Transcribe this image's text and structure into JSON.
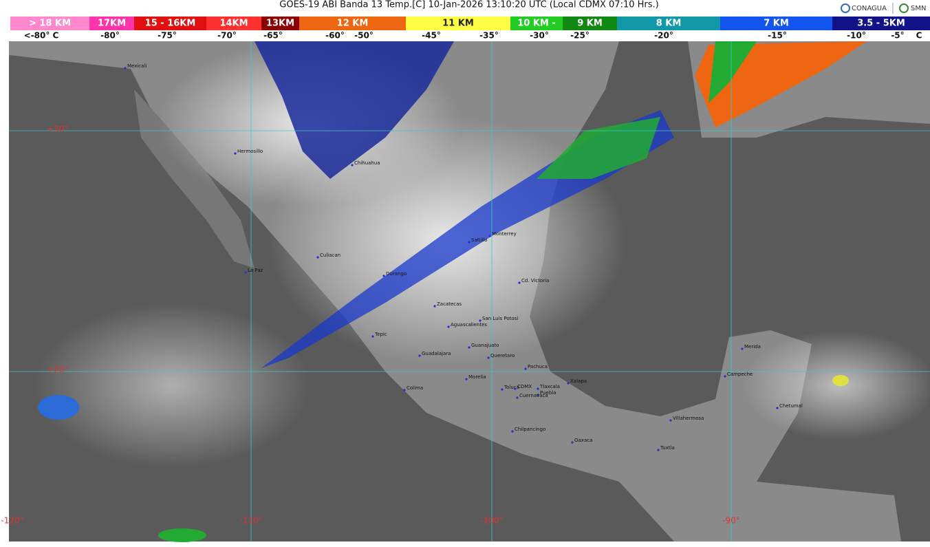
{
  "header": {
    "title": "GOES-19 ABI Banda 13 Temp.[C] 10-Jan-2026 13:10:20 UTC (Local CDMX  07:10 Hrs.)",
    "logos": [
      "CONAGUA",
      "SMN"
    ]
  },
  "legend": {
    "bands": [
      {
        "label": "> 18 KM",
        "color": "#ff88cc"
      },
      {
        "label": "17KM",
        "color": "#ff33aa"
      },
      {
        "label": "15 - 16KM",
        "color": "#e01010"
      },
      {
        "label": "14KM",
        "color": "#ff3030"
      },
      {
        "label": "13KM",
        "color": "#8b0000"
      },
      {
        "label": "12 KM",
        "color": "#ee6611"
      },
      {
        "label": "11 KM",
        "color": "#ffff44"
      },
      {
        "label": "10 KM -",
        "color": "#22cc22"
      },
      {
        "label": "9 KM",
        "color": "#118811"
      },
      {
        "label": "8 KM",
        "color": "#1199aa"
      },
      {
        "label": "7 KM",
        "color": "#1155ee"
      },
      {
        "label": "3.5 - 5KM",
        "color": "#111188"
      }
    ],
    "temps": [
      "<-80° C",
      "-80°",
      "-75°",
      "-70°",
      "-65°",
      "-60°",
      "-50°",
      "-45°",
      "-35°",
      "-30°",
      "-25°",
      "-20°",
      "-15°",
      "-10°",
      "-5°",
      "C"
    ]
  },
  "map": {
    "latitudes": [
      "+30°",
      "+20°"
    ],
    "longitudes": [
      "-120°",
      "-110°",
      "-100°",
      "-90°"
    ],
    "cities": [
      "Mexicali",
      "Hermosillo",
      "Chihuahua",
      "La Paz",
      "Culiacan",
      "Durango",
      "Saltillo",
      "Monterrey",
      "Cd. Victoria",
      "Zacatecas",
      "San Luis Potosi",
      "Aguascalientes",
      "Tepic",
      "Guanajuato",
      "Queretaro",
      "Guadalajara",
      "Pachuca",
      "Morelia",
      "Colima",
      "Toluca",
      "CDMX",
      "Tlaxcala",
      "Xalapa",
      "Puebla",
      "Cuernavaca",
      "Chilpancingo",
      "Oaxaca",
      "Villahermosa",
      "Tuxtla",
      "Campeche",
      "Merida",
      "Chetumal"
    ]
  }
}
